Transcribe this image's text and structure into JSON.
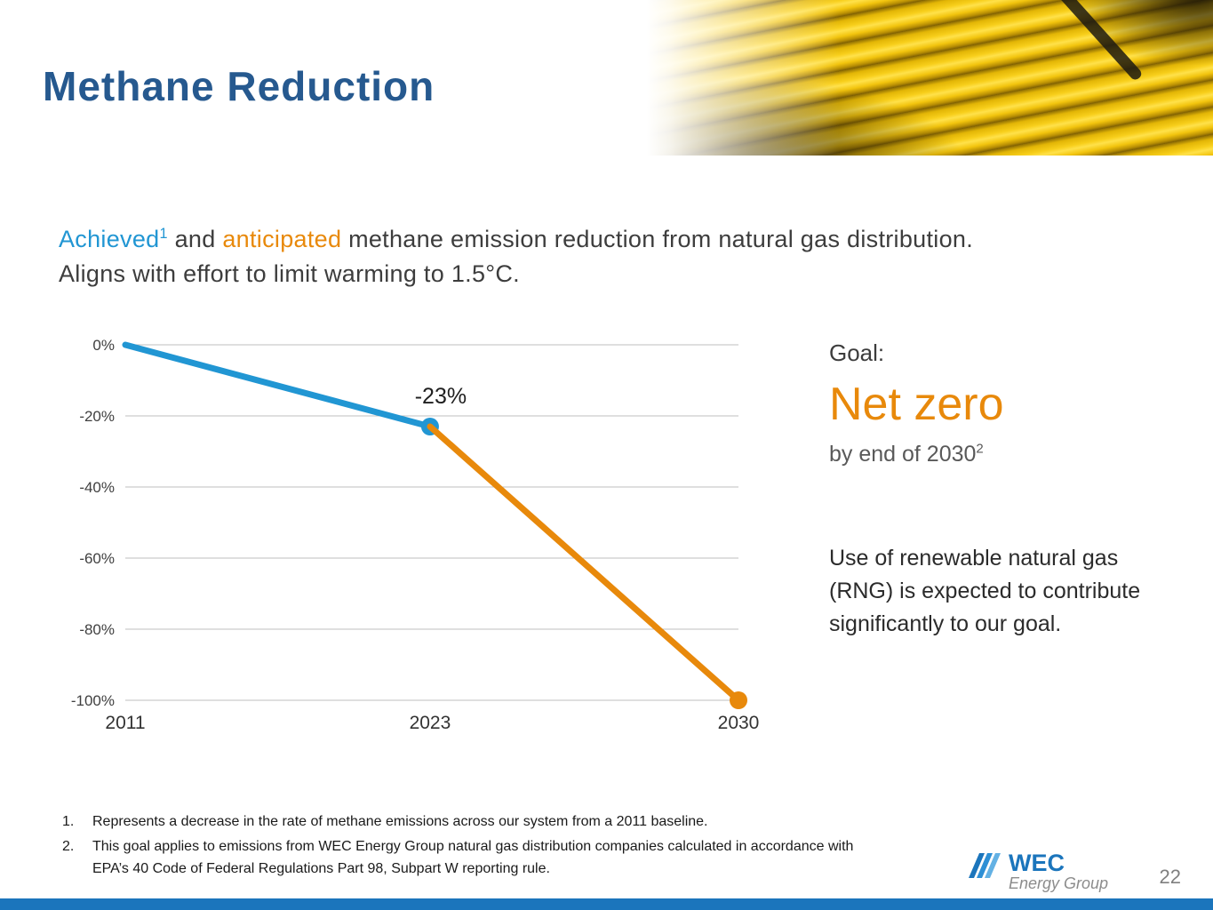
{
  "slide": {
    "title": "Methane Reduction",
    "page_number": "22"
  },
  "intro": {
    "achieved": "Achieved",
    "achieved_sup": "1",
    "and": " and ",
    "anticipated": "anticipated",
    "rest": " methane emission reduction from natural gas distribution.",
    "line2": "Aligns with effort to limit warming to 1.5°C."
  },
  "goal": {
    "label": "Goal:",
    "value": "Net zero",
    "sub": "by end of 2030",
    "sub_sup": "2",
    "body": "Use of renewable natural gas (RNG) is expected to contribute significantly to our goal."
  },
  "footnotes": [
    {
      "num": "1.",
      "text": "Represents a decrease in the rate of methane emissions across our system from a 2011 baseline."
    },
    {
      "num": "2.",
      "text": "This goal applies to emissions from WEC Energy Group natural gas distribution companies calculated in accordance with EPA’s 40 Code of Federal Regulations Part 98, Subpart W reporting rule."
    }
  ],
  "logo": {
    "wec": "WEC",
    "energy_group": "Energy Group"
  },
  "colors": {
    "title_blue": "#26598F",
    "achieved_blue": "#2196D3",
    "anticipated_orange": "#E8890B",
    "footer_bar_blue": "#1B75BC",
    "gridline_gray": "#BFBFBF"
  },
  "chart_data": {
    "type": "line",
    "title": "",
    "xlabel": "",
    "ylabel": "",
    "xticks": [
      "2011",
      "2023",
      "2030"
    ],
    "yticks": [
      "0%",
      "-20%",
      "-40%",
      "-60%",
      "-80%",
      "-100%"
    ],
    "ylim": [
      -100,
      0
    ],
    "grid": "horizontal",
    "legend": "none",
    "annotation": "-23%",
    "series": [
      {
        "name": "Achieved",
        "color": "#2196D3",
        "points": [
          [
            2011,
            0
          ],
          [
            2023,
            -23
          ]
        ]
      },
      {
        "name": "Anticipated",
        "color": "#E8890B",
        "points": [
          [
            2023,
            -23
          ],
          [
            2030,
            -100
          ]
        ]
      }
    ]
  }
}
